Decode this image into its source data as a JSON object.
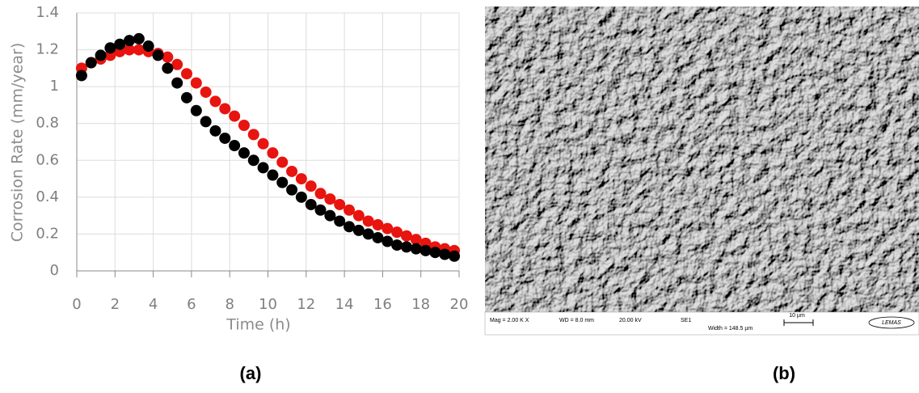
{
  "chart_data": {
    "type": "scatter",
    "x": [
      0.25,
      0.75,
      1.25,
      1.75,
      2.25,
      2.75,
      3.25,
      3.75,
      4.25,
      4.75,
      5.25,
      5.75,
      6.25,
      6.75,
      7.25,
      7.75,
      8.25,
      8.75,
      9.25,
      9.75,
      10.25,
      10.75,
      11.25,
      11.75,
      12.25,
      12.75,
      13.25,
      13.75,
      14.25,
      14.75,
      15.25,
      15.75,
      16.25,
      16.75,
      17.25,
      17.75,
      18.25,
      18.75,
      19.25,
      19.75
    ],
    "series": [
      {
        "color": "#e8140f",
        "values": [
          1.1,
          1.13,
          1.15,
          1.17,
          1.19,
          1.2,
          1.2,
          1.19,
          1.18,
          1.16,
          1.12,
          1.07,
          1.02,
          0.97,
          0.92,
          0.88,
          0.84,
          0.79,
          0.74,
          0.69,
          0.64,
          0.59,
          0.54,
          0.5,
          0.46,
          0.42,
          0.39,
          0.36,
          0.33,
          0.3,
          0.27,
          0.25,
          0.23,
          0.21,
          0.19,
          0.17,
          0.15,
          0.13,
          0.12,
          0.11
        ]
      },
      {
        "color": "#000000",
        "values": [
          1.06,
          1.13,
          1.17,
          1.21,
          1.23,
          1.25,
          1.26,
          1.22,
          1.17,
          1.1,
          1.02,
          0.94,
          0.87,
          0.81,
          0.76,
          0.72,
          0.68,
          0.64,
          0.6,
          0.56,
          0.52,
          0.48,
          0.44,
          0.4,
          0.36,
          0.33,
          0.3,
          0.27,
          0.24,
          0.22,
          0.2,
          0.18,
          0.16,
          0.14,
          0.13,
          0.12,
          0.11,
          0.1,
          0.09,
          0.08
        ]
      }
    ],
    "x_label": "Time (h)",
    "y_label": "Corrosion Rate (mm/year)",
    "xlim": [
      0,
      20
    ],
    "xticks": [
      0,
      2,
      4,
      6,
      8,
      10,
      12,
      14,
      16,
      18,
      20
    ],
    "ylim": [
      0,
      1.4
    ],
    "yticks": [
      0,
      0.2,
      0.4,
      0.6,
      0.8,
      1,
      1.2,
      1.4
    ],
    "grid": true
  },
  "panel_labels": [
    "(a)",
    "(b)"
  ],
  "sem_info": {
    "mag": "Mag =  2.00 K X",
    "wd": "WD =  8.0 mm",
    "kv": "20.00 kV",
    "detector": "SE1",
    "width": "Width = 148.5 µm",
    "scale": "10 µm",
    "logo": "LEMAS"
  }
}
